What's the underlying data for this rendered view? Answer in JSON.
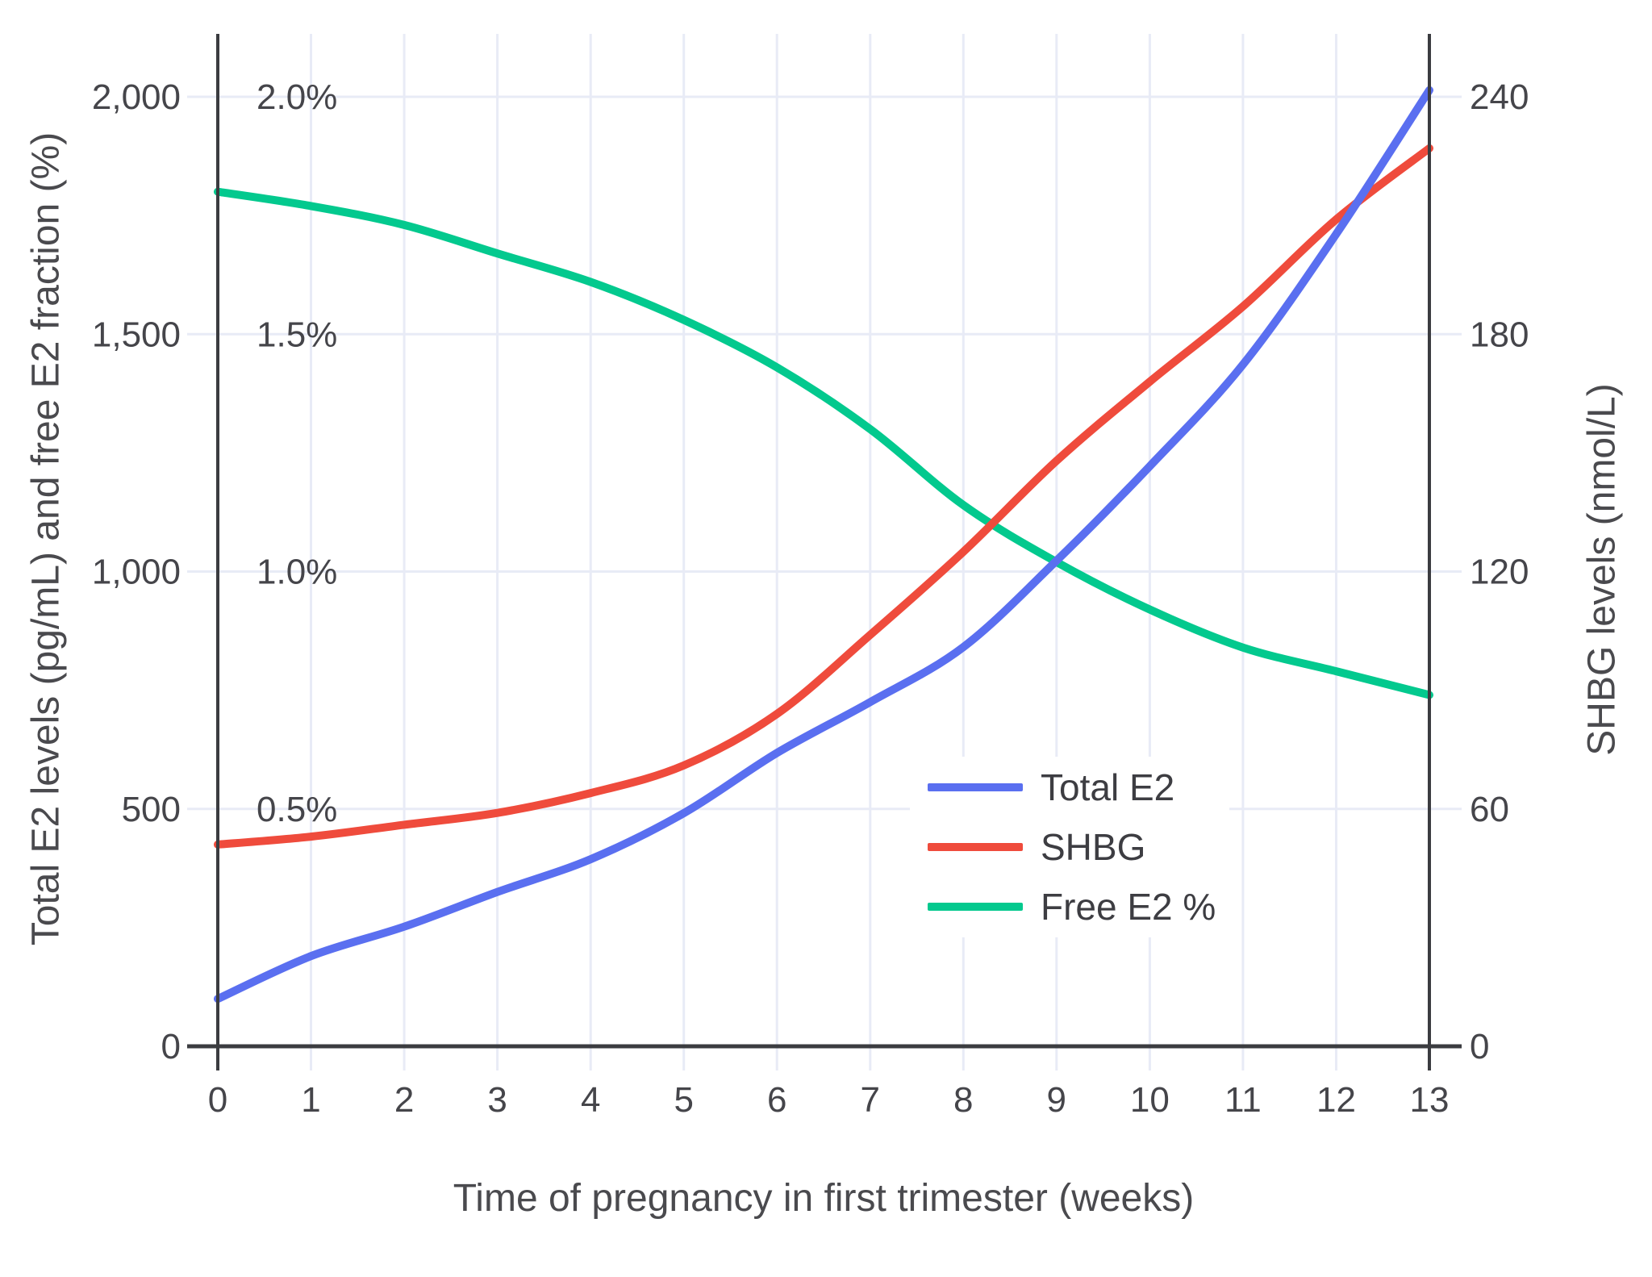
{
  "chart_data": {
    "type": "line",
    "title": "",
    "xlabel": "Time of pregnancy in first trimester (weeks)",
    "ylabel_left": "Total E2 levels (pg/mL) and free E2 fraction (%)",
    "ylabel_right": "SHBG levels (nmol/L)",
    "x": [
      0,
      1,
      2,
      3,
      4,
      5,
      6,
      7,
      8,
      9,
      10,
      11,
      12,
      13
    ],
    "x_tick_labels": [
      "0",
      "1",
      "2",
      "3",
      "4",
      "5",
      "6",
      "7",
      "8",
      "9",
      "10",
      "11",
      "12",
      "13"
    ],
    "axes": {
      "left": {
        "range": [
          0,
          2000
        ],
        "grid": true,
        "ticks": [
          {
            "v": 0,
            "label": "0"
          },
          {
            "v": 500,
            "label": "500"
          },
          {
            "v": 1000,
            "label": "1,000"
          },
          {
            "v": 1500,
            "label": "1,500"
          },
          {
            "v": 2000,
            "label": "2,000"
          }
        ]
      },
      "left_pct": {
        "unit": "%",
        "scale_to_left": 1000,
        "inner_labels": [
          {
            "v": 0.5,
            "label": "0.5%"
          },
          {
            "v": 1.0,
            "label": "1.0%"
          },
          {
            "v": 1.5,
            "label": "1.5%"
          },
          {
            "v": 2.0,
            "label": "2.0%"
          }
        ]
      },
      "right": {
        "range": [
          0,
          240
        ],
        "ticks": [
          {
            "v": 0,
            "label": "0"
          },
          {
            "v": 60,
            "label": "60"
          },
          {
            "v": 120,
            "label": "120"
          },
          {
            "v": 180,
            "label": "180"
          },
          {
            "v": 240,
            "label": "240"
          }
        ]
      }
    },
    "series": [
      {
        "name": "Total E2",
        "axis": "left",
        "unit": "pg/mL",
        "color": "#5a6ff0",
        "values": [
          100,
          190,
          252,
          325,
          394,
          491,
          618,
          725,
          841,
          1023,
          1222,
          1436,
          1711,
          2014
        ]
      },
      {
        "name": "SHBG",
        "axis": "right",
        "unit": "nmol/L",
        "color": "#ef4b3c",
        "values": [
          51,
          53,
          56,
          59,
          64,
          71,
          84,
          104,
          125,
          148,
          168,
          187,
          209,
          227
        ]
      },
      {
        "name": "Free E2 %",
        "axis": "left_pct",
        "unit": "%",
        "color": "#03c98e",
        "values": [
          1.8,
          1.77,
          1.73,
          1.67,
          1.61,
          1.53,
          1.43,
          1.3,
          1.14,
          1.02,
          0.92,
          0.84,
          0.79,
          0.74
        ]
      }
    ],
    "legend": {
      "position": "inside-right",
      "labels": [
        "Total E2",
        "SHBG",
        "Free E2 %"
      ]
    },
    "xlim": [
      0,
      13
    ]
  },
  "colors": {
    "grid": "#e8ebf6",
    "axis_spine": "#3b3c40",
    "tick_text": "#45454a",
    "title_text": "#4a4a4e"
  }
}
